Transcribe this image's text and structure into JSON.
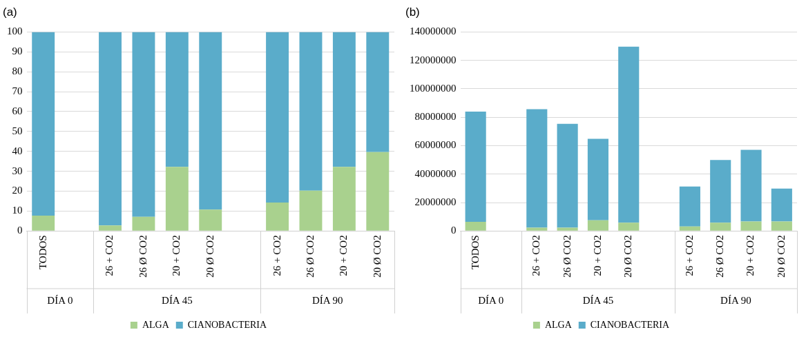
{
  "chart_data": [
    {
      "type": "bar",
      "title": "(a)",
      "categories": [
        "TODOS",
        null,
        "26 + CO2",
        "26 Ø CO2",
        "20 + CO2",
        "20 Ø CO2",
        null,
        "26 + CO2",
        "26 Ø CO2",
        "20 + CO2",
        "20 Ø CO2"
      ],
      "series": [
        {
          "name": "ALGA",
          "color": "#a9d18e",
          "values": [
            7.7,
            null,
            2.8,
            7.1,
            32.2,
            10.8,
            null,
            14.3,
            20.3,
            32.2,
            39.7
          ]
        },
        {
          "name": "CIANOBACTERIA",
          "color": "#5aacca",
          "values": [
            92.3,
            null,
            97.2,
            92.9,
            67.8,
            89.2,
            null,
            85.7,
            79.7,
            67.8,
            60.3
          ]
        }
      ],
      "stacked": true,
      "ylim": [
        0,
        100
      ],
      "yticks": [
        0,
        10,
        20,
        30,
        40,
        50,
        60,
        70,
        80,
        90,
        100
      ],
      "grid": "y",
      "legend": "bottom",
      "annotations": [
        "DÍA 0",
        "DÍA 45",
        "DÍA 90"
      ]
    },
    {
      "type": "bar",
      "title": "(b)",
      "categories": [
        "TODOS",
        null,
        "26 + CO2",
        "26 Ø CO2",
        "20 + CO2",
        "20 Ø CO2",
        null,
        "26 + CO2",
        "26 Ø CO2",
        "20 + CO2",
        "20 Ø CO2"
      ],
      "series": [
        {
          "name": "ALGA",
          "color": "#a9d18e",
          "values": [
            6400000,
            null,
            2400000,
            2400000,
            7500000,
            5800000,
            null,
            3200000,
            5800000,
            6700000,
            6700000
          ]
        },
        {
          "name": "CIANOBACTERIA",
          "color": "#5aacca",
          "values": [
            77600000,
            null,
            83300000,
            73000000,
            57300000,
            123900000,
            null,
            28100000,
            44200000,
            50400000,
            23100000
          ]
        }
      ],
      "stacked": true,
      "ylim": [
        0,
        140000000
      ],
      "yticks": [
        0,
        20000000,
        40000000,
        60000000,
        80000000,
        100000000,
        120000000,
        140000000
      ],
      "grid": "y",
      "legend": "bottom",
      "annotations": [
        "DÍA 0",
        "DÍA 45",
        "DÍA 90"
      ]
    }
  ]
}
